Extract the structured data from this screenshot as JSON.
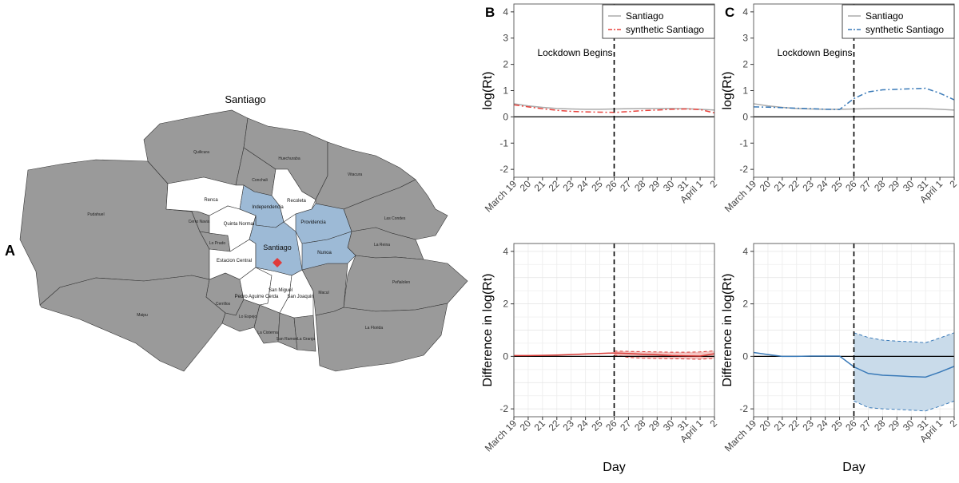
{
  "map": {
    "panel_letter": "A",
    "title": "Santiago",
    "colors": {
      "grey": "#9a9a9a",
      "blue": "#9dbad6",
      "white": "#ffffff",
      "marker": "#e03a3a",
      "stroke": "#333333"
    },
    "regions": [
      {
        "name": "Quilicura",
        "type": "grey"
      },
      {
        "name": "Huechuraba",
        "type": "grey"
      },
      {
        "name": "Vitacura",
        "type": "grey"
      },
      {
        "name": "Pudahuel",
        "type": "grey"
      },
      {
        "name": "Las Condes",
        "type": "grey"
      },
      {
        "name": "La Reina",
        "type": "grey"
      },
      {
        "name": "Peñalolen",
        "type": "grey"
      },
      {
        "name": "Maipu",
        "type": "grey"
      },
      {
        "name": "La Florida",
        "type": "grey"
      },
      {
        "name": "Conchali",
        "type": "grey"
      },
      {
        "name": "Cerro Navia",
        "type": "grey"
      },
      {
        "name": "Lo Prado",
        "type": "grey"
      },
      {
        "name": "Cerrillos",
        "type": "grey"
      },
      {
        "name": "Lo Espejo",
        "type": "grey"
      },
      {
        "name": "La Cisterna",
        "type": "grey"
      },
      {
        "name": "San Ramon",
        "type": "grey"
      },
      {
        "name": "La Granja",
        "type": "grey"
      },
      {
        "name": "Macul",
        "type": "grey"
      },
      {
        "name": "Independencia",
        "type": "blue"
      },
      {
        "name": "Providencia",
        "type": "blue"
      },
      {
        "name": "Santiago",
        "type": "blue"
      },
      {
        "name": "Nunoa",
        "type": "blue"
      },
      {
        "name": "Renca",
        "type": "white"
      },
      {
        "name": "Recoleta",
        "type": "white"
      },
      {
        "name": "Quinta Normal",
        "type": "white"
      },
      {
        "name": "Estacion Central",
        "type": "white"
      },
      {
        "name": "San Miguel",
        "type": "white"
      },
      {
        "name": "Pedro Aguirre Cerda",
        "type": "white"
      },
      {
        "name": "San Joaquin",
        "type": "white"
      }
    ]
  },
  "chart_data": [
    {
      "id": "B-top",
      "panel_letter": "B",
      "type": "line",
      "x": [
        "March 19",
        "20",
        "21",
        "22",
        "23",
        "24",
        "25",
        "26",
        "27",
        "28",
        "29",
        "30",
        "31",
        "April 1",
        "2"
      ],
      "xlabel": "",
      "ylabel": "log(Rt)",
      "ylim": [
        -2.3,
        4.3
      ],
      "yticks": [
        -2,
        -1,
        0,
        1,
        2,
        3,
        4
      ],
      "grid": false,
      "legend": "top-right",
      "annotation": "Lockdown Begins",
      "vline_x": "26",
      "series": [
        {
          "name": "Santiago",
          "color": "#aaaaaa",
          "dash": "solid",
          "values": [
            0.5,
            0.42,
            0.36,
            0.32,
            0.3,
            0.29,
            0.29,
            0.3,
            0.31,
            0.32,
            0.32,
            0.32,
            0.31,
            0.29,
            0.26
          ]
        },
        {
          "name": "synthetic Santiago",
          "color": "#e8413b",
          "dash": "dashdot",
          "values": [
            0.46,
            0.38,
            0.31,
            0.25,
            0.21,
            0.19,
            0.18,
            0.17,
            0.2,
            0.24,
            0.26,
            0.29,
            0.3,
            0.28,
            0.15
          ]
        }
      ]
    },
    {
      "id": "C-top",
      "panel_letter": "C",
      "type": "line",
      "x": [
        "March 19",
        "20",
        "21",
        "22",
        "23",
        "24",
        "25",
        "26",
        "27",
        "28",
        "29",
        "30",
        "31",
        "April 1",
        "2"
      ],
      "xlabel": "",
      "ylabel": "log(Rt)",
      "ylim": [
        -2.3,
        4.3
      ],
      "yticks": [
        -2,
        -1,
        0,
        1,
        2,
        3,
        4
      ],
      "grid": false,
      "legend": "top-right",
      "annotation": "Lockdown Begins",
      "vline_x": "26",
      "series": [
        {
          "name": "Santiago",
          "color": "#aaaaaa",
          "dash": "solid",
          "values": [
            0.5,
            0.42,
            0.36,
            0.32,
            0.3,
            0.29,
            0.29,
            0.3,
            0.31,
            0.32,
            0.32,
            0.32,
            0.31,
            0.29,
            0.26
          ]
        },
        {
          "name": "synthetic Santiago",
          "color": "#3a7ab8",
          "dash": "dashdot",
          "values": [
            0.38,
            0.37,
            0.35,
            0.33,
            0.31,
            0.29,
            0.28,
            0.7,
            0.95,
            1.03,
            1.05,
            1.07,
            1.09,
            0.9,
            0.65
          ]
        }
      ]
    },
    {
      "id": "B-bottom",
      "type": "line",
      "x": [
        "March 19",
        "20",
        "21",
        "22",
        "23",
        "24",
        "25",
        "26",
        "27",
        "28",
        "29",
        "30",
        "31",
        "April 1",
        "2"
      ],
      "xlabel": "Day",
      "ylabel": "Difference in log(Rt)",
      "ylim": [
        -2.3,
        4.3
      ],
      "yticks": [
        -2,
        0,
        2,
        4
      ],
      "grid": true,
      "vline_x": "26",
      "band_color": "#f3c5c3",
      "series": [
        {
          "name": "difference",
          "color": "#d93a36",
          "dash": "solid",
          "values": [
            0.03,
            0.03,
            0.04,
            0.05,
            0.07,
            0.09,
            0.11,
            0.13,
            0.11,
            0.08,
            0.06,
            0.03,
            0.02,
            0.01,
            0.1
          ],
          "band_upper": [
            null,
            null,
            null,
            null,
            null,
            null,
            null,
            0.2,
            0.19,
            0.18,
            0.17,
            0.16,
            0.16,
            0.17,
            0.21
          ],
          "band_lower": [
            null,
            null,
            null,
            null,
            null,
            null,
            null,
            0.05,
            -0.04,
            -0.07,
            -0.08,
            -0.09,
            -0.1,
            -0.11,
            -0.08
          ]
        }
      ]
    },
    {
      "id": "C-bottom",
      "type": "line",
      "x": [
        "March 19",
        "20",
        "21",
        "22",
        "23",
        "24",
        "25",
        "26",
        "27",
        "28",
        "29",
        "30",
        "31",
        "April 1",
        "2"
      ],
      "xlabel": "Day",
      "ylabel": "Difference in log(Rt)",
      "ylim": [
        -2.3,
        4.3
      ],
      "yticks": [
        -2,
        0,
        2,
        4
      ],
      "grid": true,
      "vline_x": "26",
      "band_color": "#c9dbea",
      "series": [
        {
          "name": "difference",
          "color": "#3a7ab8",
          "dash": "solid",
          "values": [
            0.15,
            0.07,
            0.0,
            0.0,
            0.01,
            0.01,
            0.01,
            -0.4,
            -0.65,
            -0.72,
            -0.74,
            -0.77,
            -0.79,
            -0.6,
            -0.38
          ],
          "band_upper": [
            null,
            null,
            null,
            null,
            null,
            null,
            null,
            0.9,
            0.72,
            0.62,
            0.58,
            0.56,
            0.52,
            0.7,
            0.9
          ],
          "band_lower": [
            null,
            null,
            null,
            null,
            null,
            null,
            null,
            -1.7,
            -1.95,
            -2.0,
            -2.02,
            -2.05,
            -2.08,
            -1.9,
            -1.7
          ]
        }
      ]
    }
  ]
}
